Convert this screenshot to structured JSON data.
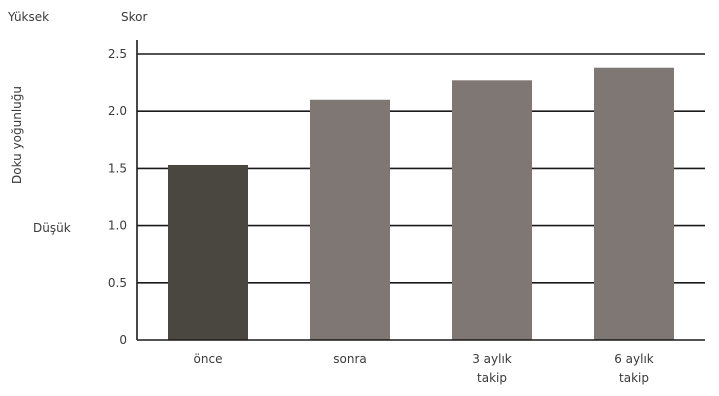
{
  "chart_data": {
    "type": "bar",
    "ylabel": "Doku yoğunluğu",
    "y_scale_title": "Skor",
    "y_side_labels": {
      "high": "Yüksek",
      "low": "Düşük"
    },
    "ylim": [
      0,
      2.5
    ],
    "y_ticks": [
      "0",
      "0.5",
      "1.0",
      "1.5",
      "2.0",
      "2.5"
    ],
    "y_tick_values": [
      0,
      0.5,
      1.0,
      1.5,
      2.0,
      2.5
    ],
    "categories": [
      [
        "önce"
      ],
      [
        "sonra"
      ],
      [
        "3 aylık",
        "takip"
      ],
      [
        "6  aylık",
        "takip"
      ]
    ],
    "values": [
      1.53,
      2.1,
      2.27,
      2.38
    ],
    "bar_colors": [
      "#4a4640",
      "#7f7773",
      "#7f7773",
      "#7f7773"
    ],
    "grid": true,
    "legend": "none"
  }
}
